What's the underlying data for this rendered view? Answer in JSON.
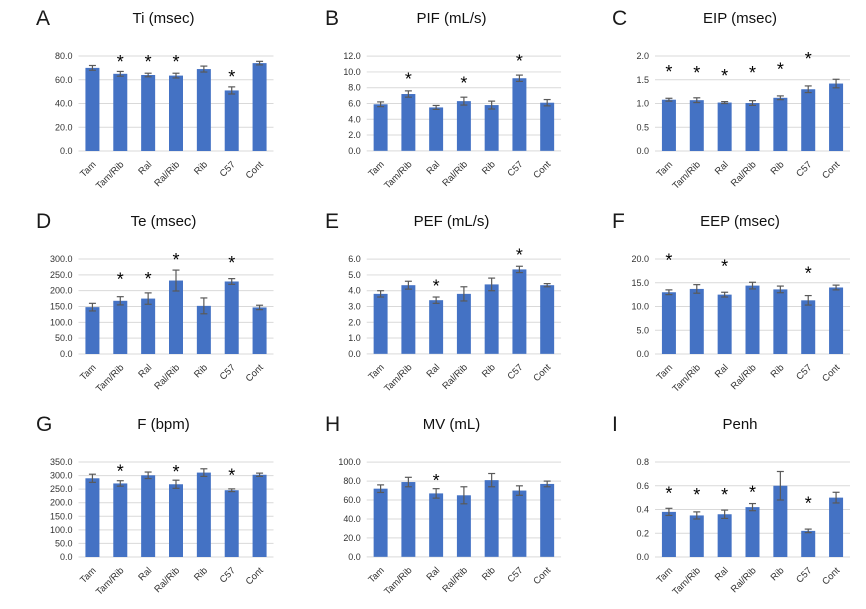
{
  "figure": {
    "background": "#ffffff",
    "description": "3x3 grid of bar charts A-I comparing respiratory parameters across mouse groups",
    "significance_marker": "*"
  },
  "colors": {
    "bar": "#4472C4",
    "gridline": "#D9D9D9",
    "error_bar": "#595959",
    "text": "#111111"
  },
  "categories": [
    "Tam",
    "Tam/Rib",
    "Ral",
    "Ral/Rib",
    "Rib",
    "C57",
    "Cont"
  ],
  "chart_data": [
    {
      "panel": "A",
      "type": "bar",
      "title": "Ti (msec)",
      "ylim": [
        0,
        80
      ],
      "ytick_step": 20,
      "tick_decimals": 1,
      "grid": true,
      "values": [
        70,
        65,
        64,
        63.5,
        69,
        51,
        74
      ],
      "errors": [
        2,
        2,
        1.5,
        2,
        2.5,
        3,
        1.5
      ],
      "significant": [
        false,
        true,
        true,
        true,
        false,
        true,
        false
      ],
      "sig_y": [
        null,
        76,
        76,
        76,
        null,
        63,
        null
      ]
    },
    {
      "panel": "B",
      "type": "bar",
      "title": "PIF (mL/s)",
      "ylim": [
        0,
        12
      ],
      "ytick_step": 2,
      "tick_decimals": 1,
      "grid": true,
      "values": [
        5.9,
        7.2,
        5.5,
        6.3,
        5.8,
        9.2,
        6.1
      ],
      "errors": [
        0.3,
        0.4,
        0.25,
        0.5,
        0.5,
        0.4,
        0.4
      ],
      "significant": [
        false,
        true,
        false,
        true,
        false,
        true,
        false
      ],
      "sig_y": [
        null,
        9.3,
        null,
        8.8,
        null,
        11.6,
        null
      ]
    },
    {
      "panel": "C",
      "type": "bar",
      "title": "EIP (msec)",
      "ylim": [
        0,
        2
      ],
      "ytick_step": 0.5,
      "tick_decimals": 1,
      "grid": true,
      "values": [
        1.08,
        1.07,
        1.02,
        1.01,
        1.12,
        1.3,
        1.42
      ],
      "errors": [
        0.03,
        0.05,
        0.02,
        0.05,
        0.04,
        0.07,
        0.09
      ],
      "significant": [
        true,
        true,
        true,
        true,
        true,
        true,
        false
      ],
      "sig_y": [
        1.68,
        1.66,
        1.6,
        1.66,
        1.74,
        1.96,
        null
      ]
    },
    {
      "panel": "D",
      "type": "bar",
      "title": "Te (msec)",
      "ylim": [
        0,
        300
      ],
      "ytick_step": 50,
      "tick_decimals": 1,
      "grid": true,
      "values": [
        148,
        168,
        175,
        232,
        152,
        229,
        147
      ],
      "errors": [
        12,
        13,
        18,
        33,
        25,
        9,
        7
      ],
      "significant": [
        false,
        true,
        true,
        true,
        false,
        true,
        false
      ],
      "sig_y": [
        null,
        238,
        240,
        300,
        null,
        290,
        null
      ]
    },
    {
      "panel": "E",
      "type": "bar",
      "title": "PEF (mL/s)",
      "ylim": [
        0,
        6
      ],
      "ytick_step": 1,
      "tick_decimals": 1,
      "grid": true,
      "values": [
        3.8,
        4.35,
        3.4,
        3.8,
        4.4,
        5.35,
        4.35
      ],
      "errors": [
        0.2,
        0.25,
        0.2,
        0.45,
        0.4,
        0.2,
        0.1
      ],
      "significant": [
        false,
        false,
        true,
        false,
        false,
        true,
        false
      ],
      "sig_y": [
        null,
        null,
        4.4,
        null,
        null,
        6.35,
        null
      ]
    },
    {
      "panel": "F",
      "type": "bar",
      "title": "EEP (msec)",
      "ylim": [
        0,
        20
      ],
      "ytick_step": 5,
      "tick_decimals": 1,
      "grid": true,
      "values": [
        13,
        13.7,
        12.5,
        14.4,
        13.6,
        11.3,
        14
      ],
      "errors": [
        0.5,
        0.9,
        0.5,
        0.7,
        0.7,
        1,
        0.5
      ],
      "significant": [
        true,
        false,
        true,
        false,
        false,
        true,
        false
      ],
      "sig_y": [
        19.9,
        null,
        18.6,
        null,
        null,
        17.2,
        null
      ]
    },
    {
      "panel": "G",
      "type": "bar",
      "title": "F (bpm)",
      "ylim": [
        0,
        350
      ],
      "ytick_step": 50,
      "tick_decimals": 1,
      "grid": true,
      "values": [
        290,
        271,
        301,
        268,
        311,
        246,
        303
      ],
      "errors": [
        15,
        10,
        12,
        15,
        14,
        5,
        6
      ],
      "significant": [
        false,
        true,
        false,
        true,
        false,
        true,
        false
      ],
      "sig_y": [
        null,
        318,
        null,
        316,
        null,
        304,
        null
      ]
    },
    {
      "panel": "H",
      "type": "bar",
      "title": "MV (mL)",
      "ylim": [
        0,
        100
      ],
      "ytick_step": 20,
      "tick_decimals": 1,
      "grid": true,
      "values": [
        72,
        79,
        67,
        65,
        81,
        70,
        77
      ],
      "errors": [
        4,
        5,
        5,
        9,
        7,
        5,
        3
      ],
      "significant": [
        false,
        false,
        true,
        false,
        false,
        false,
        false
      ],
      "sig_y": [
        null,
        null,
        82,
        null,
        null,
        null,
        null
      ]
    },
    {
      "panel": "I",
      "type": "bar",
      "title": "Penh",
      "ylim": [
        0,
        0.8
      ],
      "ytick_step": 0.2,
      "tick_decimals": 1,
      "grid": true,
      "values": [
        0.38,
        0.35,
        0.36,
        0.42,
        0.6,
        0.22,
        0.5
      ],
      "errors": [
        0.03,
        0.03,
        0.035,
        0.03,
        0.12,
        0.015,
        0.045
      ],
      "significant": [
        true,
        true,
        true,
        true,
        false,
        true,
        false
      ],
      "sig_y": [
        0.545,
        0.53,
        0.53,
        0.55,
        null,
        0.46,
        null
      ]
    }
  ]
}
